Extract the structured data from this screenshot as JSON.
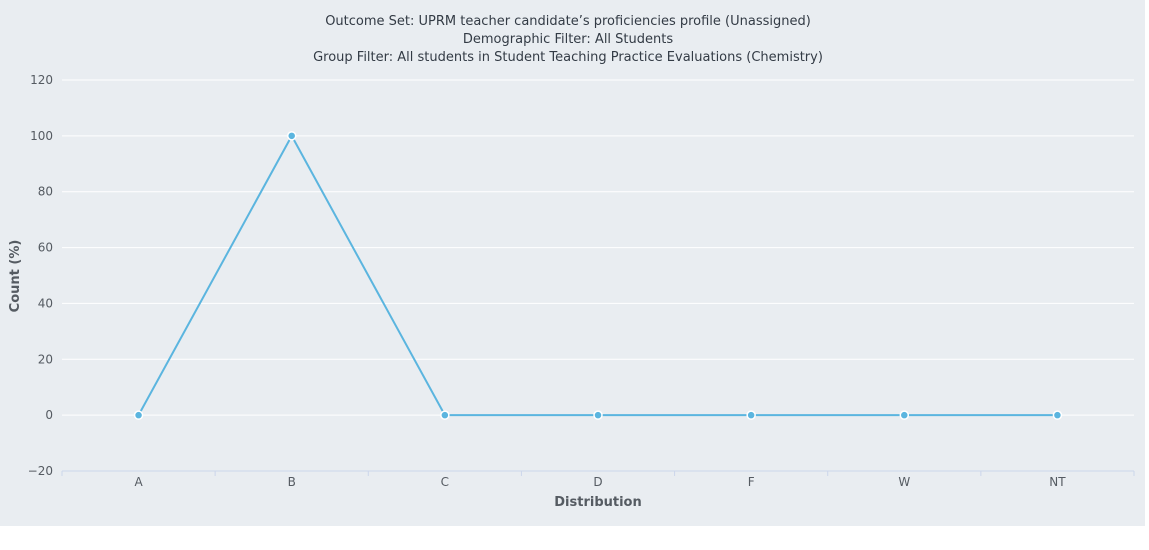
{
  "chart_data": {
    "type": "line",
    "title_lines": [
      "Outcome Set: UPRM teacher candidate’s proficiencies profile (Unassigned)",
      "Demographic Filter: All Students",
      "Group Filter: All students in Student Teaching Practice Evaluations (Chemistry)"
    ],
    "xlabel": "Distribution",
    "ylabel": "Count (%)",
    "categories": [
      "A",
      "B",
      "C",
      "D",
      "F",
      "W",
      "NT"
    ],
    "series": [
      {
        "values": [
          0,
          100,
          0,
          0,
          0,
          0,
          0
        ],
        "color": "#5bb5df"
      }
    ],
    "ylim": [
      -20,
      120
    ],
    "yticks": [
      "−20",
      "0",
      "20",
      "40",
      "60",
      "80",
      "100",
      "120"
    ],
    "ytick_values": [
      -20,
      0,
      20,
      40,
      60,
      80,
      100,
      120
    ],
    "grid": true,
    "legend": "none"
  }
}
